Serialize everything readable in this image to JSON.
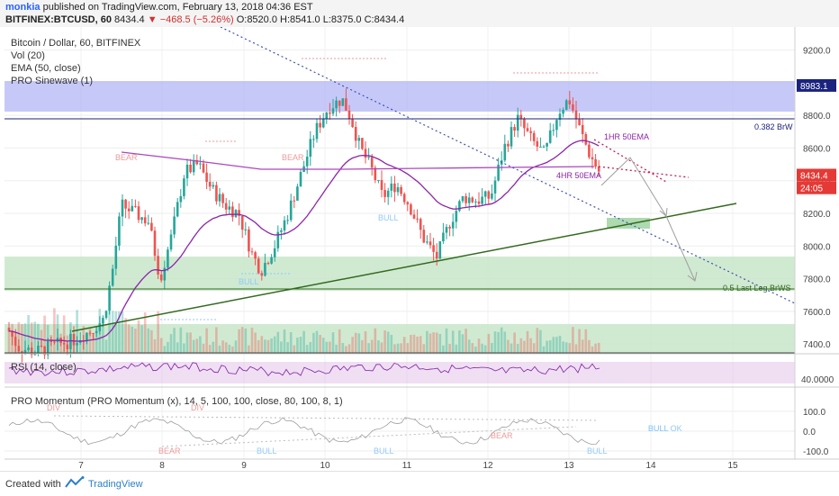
{
  "header": {
    "author": "monkia",
    "published": "published on TradingView.com, February 13, 2018 04:36 EST",
    "symbol": "BITFINEX:BTCUSD, 60",
    "last": "8434.4",
    "change": "▼ −468.5 (−5.26%)",
    "ohlc": "O:8520.0 H:8541.0 L:8375.0 C:8434.4"
  },
  "legend": {
    "title": "Bitcoin / Dollar, 60, BITFINEX",
    "vol": "Vol (20)",
    "ema": "EMA (50, close)",
    "sinewave": "PRO Sinewave (1)",
    "rsi": "RSI (14, close)",
    "momentum": "PRO Momentum (PRO Momentum (x), 14, 5, 100, 100, close, 80, 100, 8, 1)"
  },
  "footer": {
    "created": "Created with",
    "brand": "TradingView"
  },
  "colors": {
    "bull": "#26a69a",
    "bear": "#ef5350",
    "ema": "#8e24aa",
    "blue_zone": "#b3b7f5",
    "green_zone": "#c8e6c9",
    "trend": "#33691e",
    "resistance": "#1a237e"
  },
  "chart_data": {
    "type": "candlestick",
    "x_ticks": [
      "7",
      "8",
      "9",
      "10",
      "11",
      "12",
      "13",
      "14",
      "15"
    ],
    "price_axis": {
      "ticks": [
        7400,
        7600,
        7800,
        8000,
        8200,
        8400,
        8600,
        8800,
        9000,
        9200
      ],
      "range": [
        7340,
        9330
      ],
      "badges": [
        {
          "value": 8983.1,
          "label": "8983.1"
        },
        {
          "value": 8434.4,
          "label": "8434.4"
        },
        {
          "value": 8356,
          "label": "24:05"
        }
      ]
    },
    "annotations": [
      {
        "text": "1HR 50EMA",
        "color": "#8e24aa"
      },
      {
        "text": "4HR 50EMA",
        "color": "#8e24aa"
      },
      {
        "text": "0.382 BrW",
        "color": "#1a237e"
      },
      {
        "text": "0.5 Last Leg BrWS",
        "color": "#33691e"
      },
      {
        "text": "BEAR",
        "color": "#ef9a9a"
      },
      {
        "text": "BEAR",
        "color": "#ef9a9a"
      },
      {
        "text": "BULL",
        "color": "#90caf9"
      },
      {
        "text": "BULL",
        "color": "#90caf9"
      },
      {
        "text": "BEAR",
        "color": "#ef9a9a"
      },
      {
        "text": "BULL",
        "color": "#90caf9"
      }
    ],
    "rsi_axis": {
      "ticks": [
        {
          "value": 40,
          "label": "40.0000"
        }
      ]
    },
    "momentum_axis": {
      "ticks": [
        {
          "value": 100,
          "label": "100.0"
        },
        {
          "value": 0,
          "label": "0.0"
        },
        {
          "value": -100,
          "label": "-100.0"
        }
      ]
    },
    "momentum_labels": [
      "DIV",
      "DIV",
      "BEAR",
      "BULL",
      "BULL",
      "BULL",
      "BULL OK"
    ],
    "ohlc_last": {
      "open": 8520.0,
      "high": 8541.0,
      "low": 8375.0,
      "close": 8434.4
    }
  }
}
